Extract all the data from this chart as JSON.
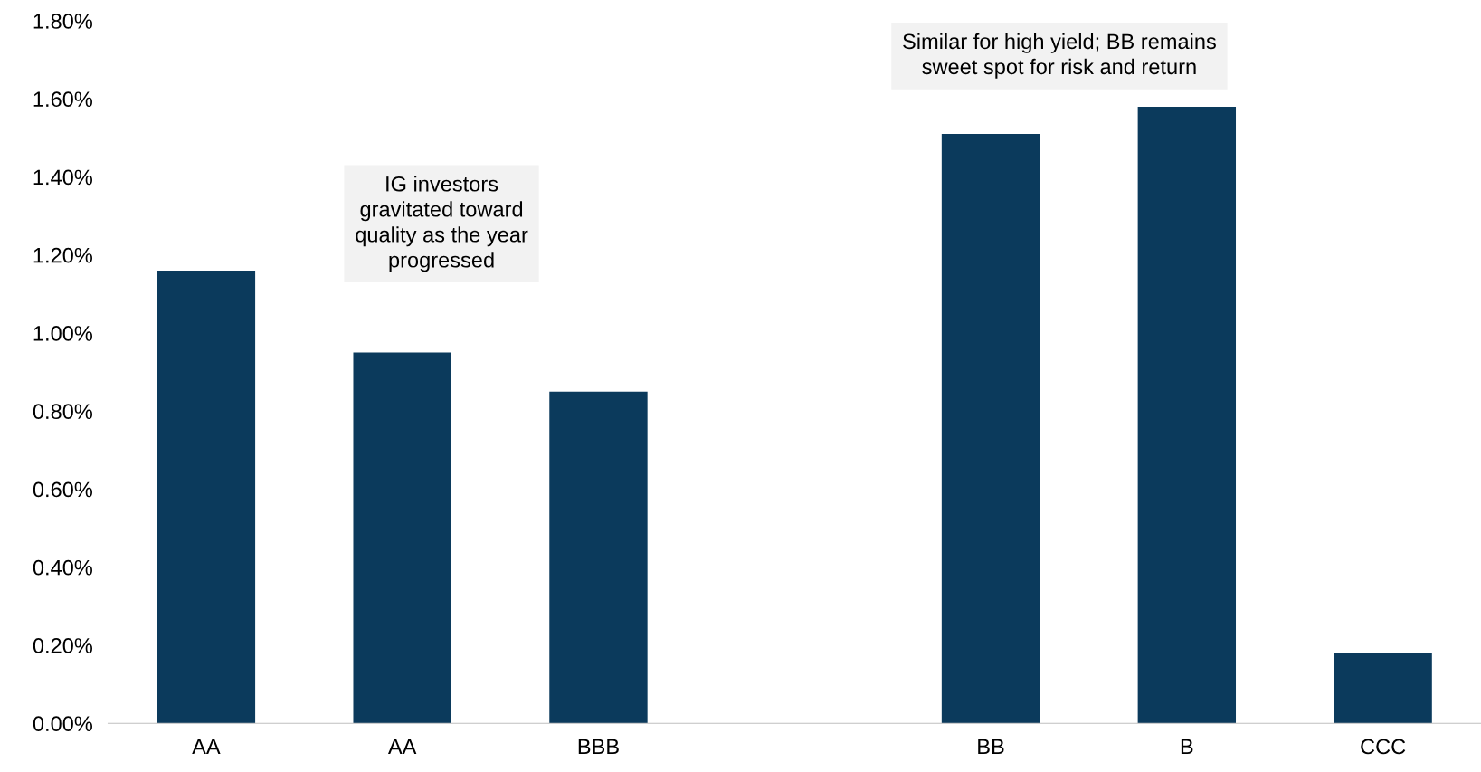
{
  "chart_data": {
    "type": "bar",
    "categories": [
      "AA",
      "AA",
      "BBB",
      null,
      "BB",
      "B",
      "CCC"
    ],
    "values": [
      1.16,
      0.95,
      0.85,
      null,
      1.51,
      1.58,
      0.18
    ],
    "color": "#0b3a5c",
    "ylim": [
      0,
      1.8
    ],
    "yticks": [
      {
        "value": 0,
        "label": "0.00%"
      },
      {
        "value": 0.2,
        "label": "0.20%"
      },
      {
        "value": 0.4,
        "label": "0.40%"
      },
      {
        "value": 0.6,
        "label": "0.60%"
      },
      {
        "value": 0.8,
        "label": "0.80%"
      },
      {
        "value": 1.0,
        "label": "1.00%"
      },
      {
        "value": 1.2,
        "label": "1.20%"
      },
      {
        "value": 1.4,
        "label": "1.40%"
      },
      {
        "value": 1.6,
        "label": "1.60%"
      },
      {
        "value": 1.8,
        "label": "1.80%"
      }
    ],
    "grid": false,
    "annotations": [
      "IG investors\ngravitated toward\nquality as the year\nprogressed",
      "Similar for high yield; BB remains\nsweet spot for risk and return"
    ]
  }
}
